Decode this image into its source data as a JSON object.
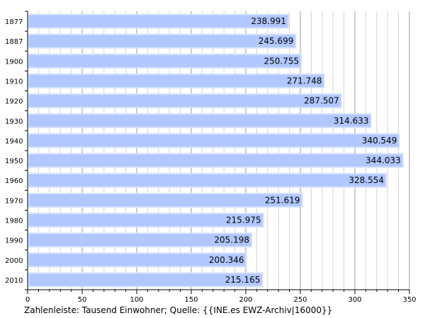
{
  "chart_data": {
    "type": "bar",
    "orientation": "horizontal",
    "categories": [
      "1877",
      "1887",
      "1900",
      "1910",
      "1920",
      "1930",
      "1940",
      "1950",
      "1960",
      "1970",
      "1980",
      "1990",
      "2000",
      "2010"
    ],
    "values": [
      238.991,
      245.699,
      250.755,
      271.748,
      287.507,
      314.633,
      340.549,
      344.033,
      328.554,
      251.619,
      215.975,
      205.198,
      200.346,
      215.165
    ],
    "value_labels": [
      "238.991",
      "245.699",
      "250.755",
      "271.748",
      "287.507",
      "314.633",
      "340.549",
      "344.033",
      "328.554",
      "251.619",
      "215.975",
      "205.198",
      "200.346",
      "215.165"
    ],
    "xlim": [
      0,
      350
    ],
    "major_ticks": [
      0,
      50,
      100,
      150,
      200,
      250,
      300,
      350
    ],
    "minor_tick_step": 10,
    "grid": true,
    "xlabel": "Zahlenleiste: Tausend Einwohner; Quelle: {{INE.es EWZ-Archiv|16000}}",
    "colors": {
      "bar_fill": "#b0c8ff",
      "bar_edge": "#d4e1ff",
      "grid_major": "#9a9a9a",
      "grid_minor": "#d4d4d4",
      "axis": "#000000"
    }
  }
}
